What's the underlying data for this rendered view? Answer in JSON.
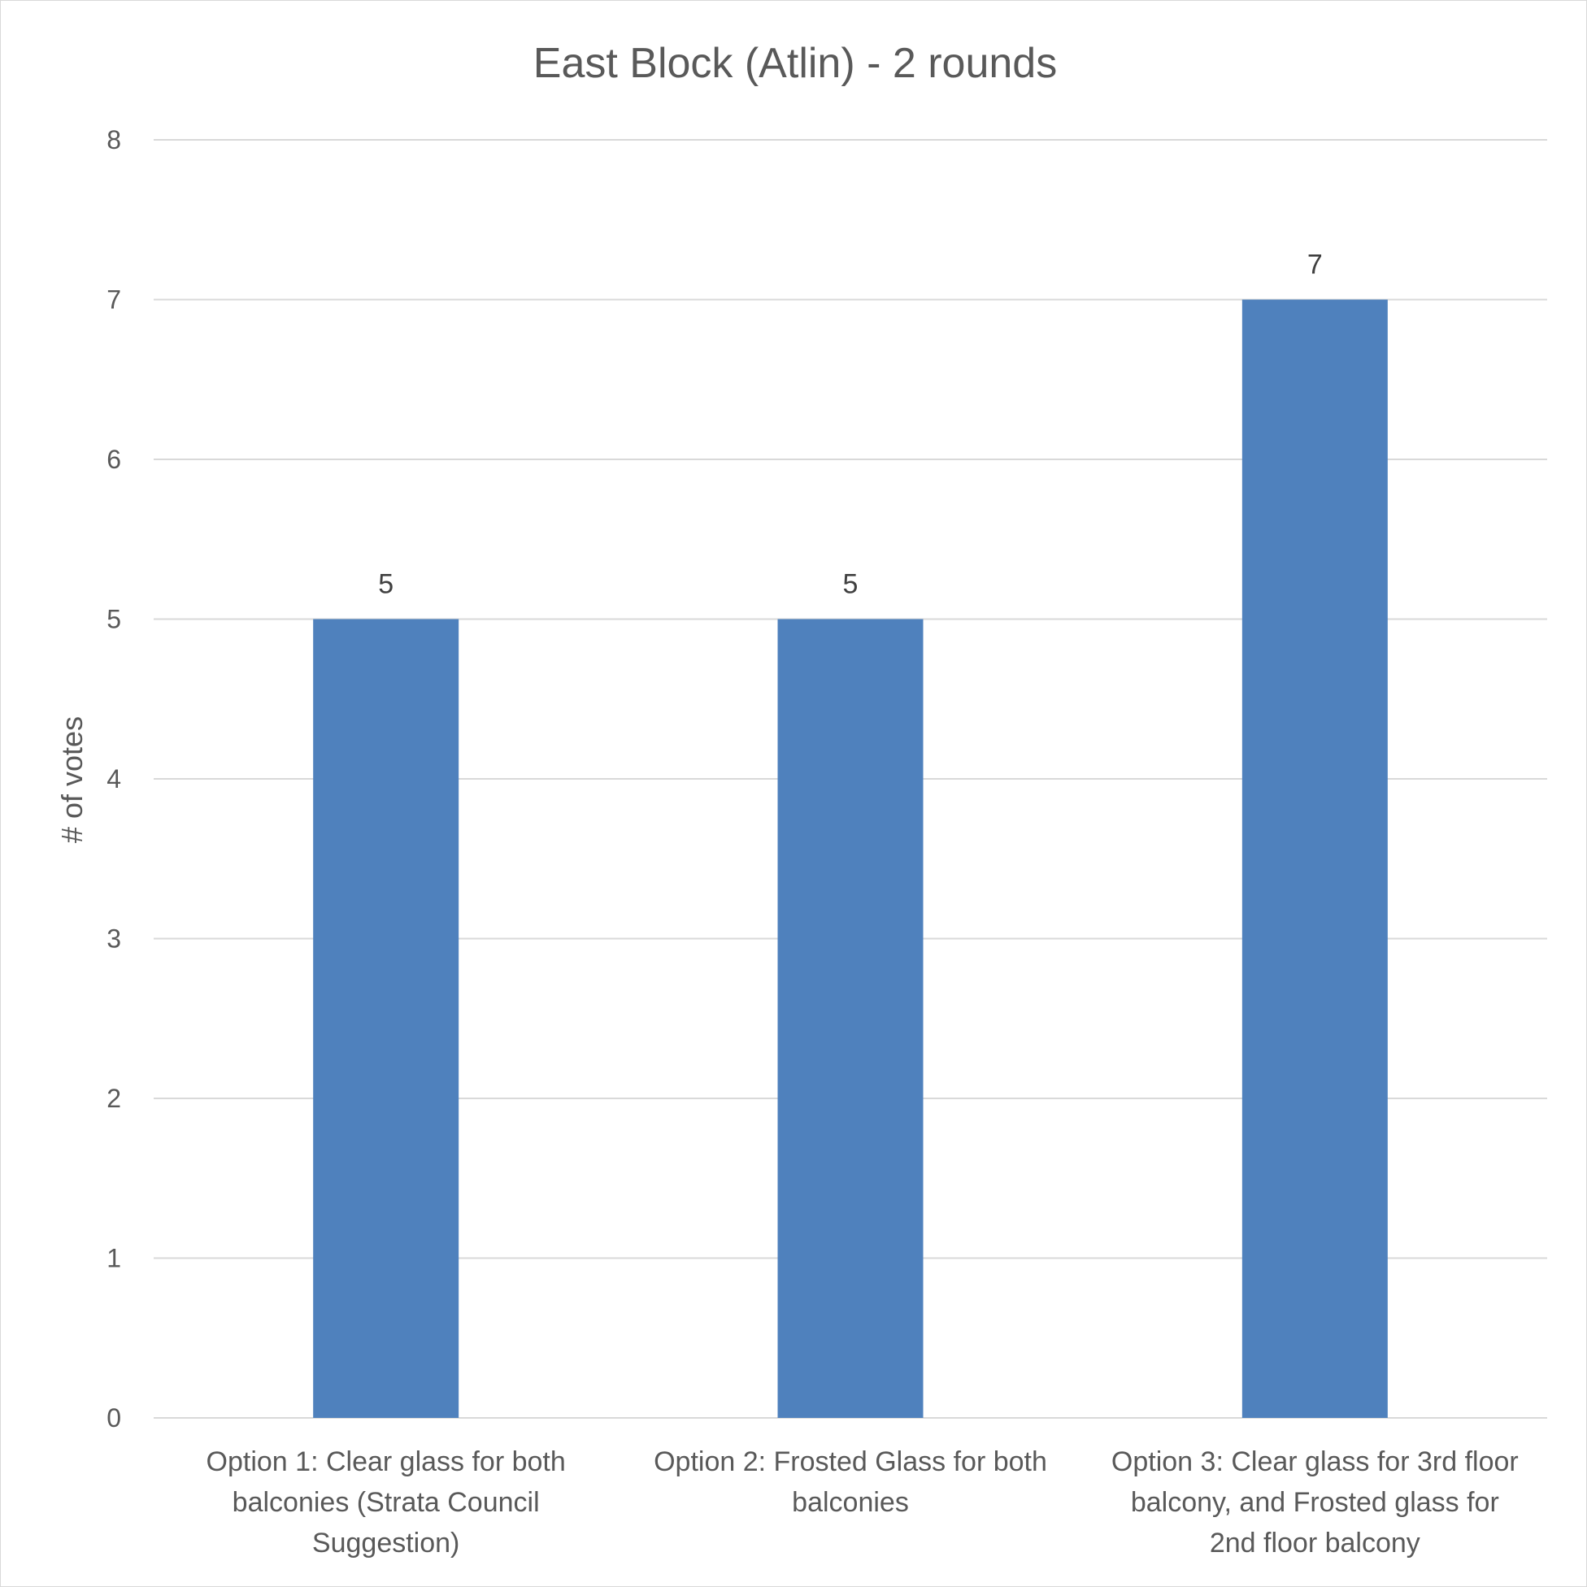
{
  "chart_data": {
    "type": "bar",
    "title": "East Block (Atlin) - 2 rounds",
    "xlabel": "",
    "ylabel": "# of votes",
    "ylim": [
      0,
      8
    ],
    "yticks": [
      0,
      1,
      2,
      3,
      4,
      5,
      6,
      7,
      8
    ],
    "categories": [
      "Option 1: Clear glass for both balconies (Strata Council Suggestion)",
      "Option 2: Frosted Glass for both balconies",
      "Option 3:  Clear glass for 3rd floor balcony, and Frosted glass for 2nd floor balcony"
    ],
    "category_label_lines": [
      [
        "Option 1: Clear glass for both",
        "balconies (Strata Council",
        "Suggestion)"
      ],
      [
        "Option 2: Frosted Glass for both",
        "balconies"
      ],
      [
        "Option 3:  Clear glass for 3rd floor",
        "balcony, and Frosted glass for",
        "2nd floor balcony"
      ]
    ],
    "values": [
      5,
      5,
      7
    ],
    "data_labels": [
      "5",
      "5",
      "7"
    ],
    "grid": true,
    "legend": "none",
    "bar_color": "#4f81bd"
  }
}
